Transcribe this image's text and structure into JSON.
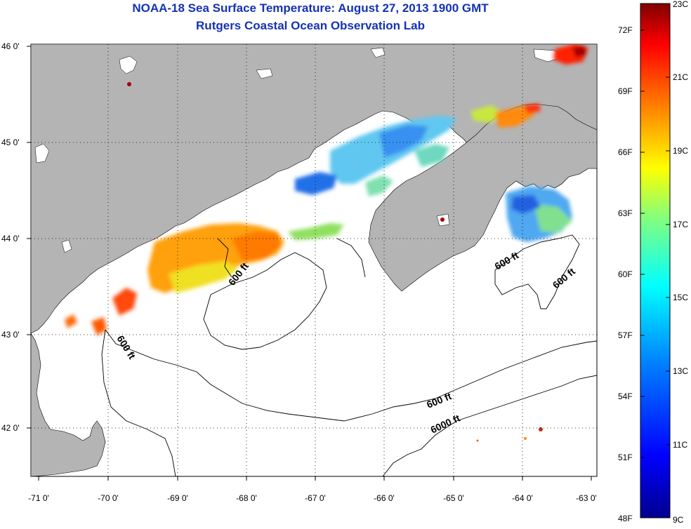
{
  "title": {
    "line1": "NOAA-18 Sea Surface Temperature:  August 27, 2013 1900 GMT",
    "line2": "Rutgers Coastal Ocean Observation Lab"
  },
  "map": {
    "lon_range": [
      -71,
      -63
    ],
    "lat_range": [
      41.5,
      46
    ],
    "lon_ticks": [
      {
        "value": -71,
        "label": "-71 0'"
      },
      {
        "value": -70,
        "label": "-70 0'"
      },
      {
        "value": -69,
        "label": "-69 0'"
      },
      {
        "value": -68,
        "label": "-68 0'"
      },
      {
        "value": -67,
        "label": "-67 0'"
      },
      {
        "value": -66,
        "label": "-66 0'"
      },
      {
        "value": -65,
        "label": "-65 0'"
      },
      {
        "value": -64,
        "label": "-64 0'"
      },
      {
        "value": -63,
        "label": "-63 0'"
      }
    ],
    "lat_ticks": [
      {
        "value": 46,
        "label": "46 0'"
      },
      {
        "value": 45,
        "label": "45 0'"
      },
      {
        "value": 44,
        "label": "44 0'"
      },
      {
        "value": 43,
        "label": "43 0'"
      },
      {
        "value": 42,
        "label": "42 0'"
      }
    ],
    "gridlines": true,
    "contour_labels": [
      "600 ft",
      "600 ft",
      "600 ft",
      "600 ft",
      "6000 ft",
      "600 ft"
    ],
    "colors": {
      "land": "#b4b4b4",
      "water": "#ffffff",
      "grid": "#000000"
    }
  },
  "colorbar": {
    "celsius_range": [
      9,
      23
    ],
    "celsius_labels": [
      "23C",
      "21C",
      "19C",
      "17C",
      "15C",
      "13C",
      "11C",
      "9C"
    ],
    "fahrenheit_labels": [
      "72F",
      "69F",
      "66F",
      "63F",
      "60F",
      "57F",
      "54F",
      "51F",
      "48F"
    ],
    "gradient": [
      "#00008f",
      "#0000ff",
      "#0080ff",
      "#00ffff",
      "#80ff80",
      "#ffff00",
      "#ff8000",
      "#ff0000",
      "#800000"
    ]
  }
}
